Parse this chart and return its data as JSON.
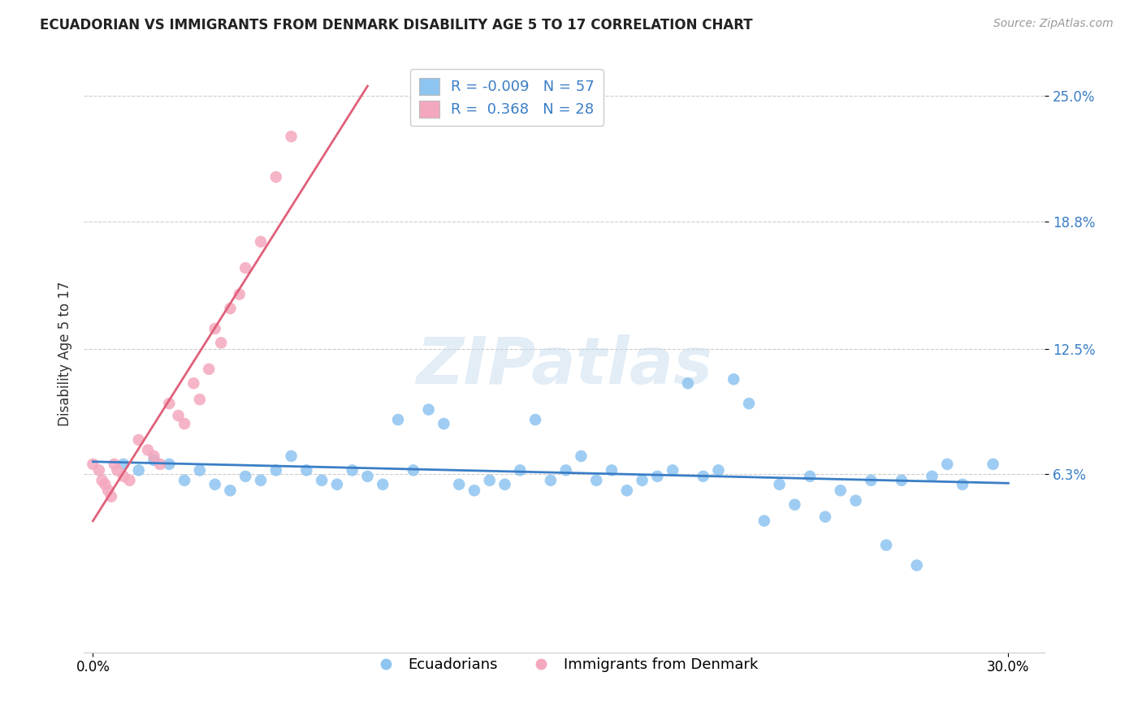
{
  "title": "ECUADORIAN VS IMMIGRANTS FROM DENMARK DISABILITY AGE 5 TO 17 CORRELATION CHART",
  "source_text": "Source: ZipAtlas.com",
  "ylabel": "Disability Age 5 to 17",
  "legend_labels": [
    "Ecuadorians",
    "Immigrants from Denmark"
  ],
  "r_blue": -0.009,
  "n_blue": 57,
  "r_pink": 0.368,
  "n_pink": 28,
  "xlim": [
    0.0,
    0.3
  ],
  "ylim": [
    -0.02,
    0.27
  ],
  "yticks": [
    0.063,
    0.125,
    0.188,
    0.25
  ],
  "ytick_labels": [
    "6.3%",
    "12.5%",
    "18.8%",
    "25.0%"
  ],
  "xticks": [
    0.0,
    0.3
  ],
  "xtick_labels": [
    "0.0%",
    "30.0%"
  ],
  "watermark": "ZIPatlas",
  "blue_color": "#8EC4F0",
  "pink_color": "#F4A8BE",
  "trendline_blue_color": "#3A7EC6",
  "trendline_pink_color": "#E0607A",
  "blue_points": [
    [
      0.01,
      0.068
    ],
    [
      0.015,
      0.065
    ],
    [
      0.02,
      0.07
    ],
    [
      0.025,
      0.068
    ],
    [
      0.03,
      0.06
    ],
    [
      0.035,
      0.065
    ],
    [
      0.04,
      0.058
    ],
    [
      0.045,
      0.055
    ],
    [
      0.05,
      0.062
    ],
    [
      0.055,
      0.06
    ],
    [
      0.06,
      0.065
    ],
    [
      0.065,
      0.072
    ],
    [
      0.07,
      0.065
    ],
    [
      0.075,
      0.06
    ],
    [
      0.08,
      0.058
    ],
    [
      0.085,
      0.065
    ],
    [
      0.09,
      0.062
    ],
    [
      0.095,
      0.058
    ],
    [
      0.1,
      0.09
    ],
    [
      0.105,
      0.065
    ],
    [
      0.11,
      0.095
    ],
    [
      0.115,
      0.088
    ],
    [
      0.12,
      0.058
    ],
    [
      0.125,
      0.055
    ],
    [
      0.13,
      0.06
    ],
    [
      0.135,
      0.058
    ],
    [
      0.14,
      0.065
    ],
    [
      0.145,
      0.09
    ],
    [
      0.15,
      0.06
    ],
    [
      0.155,
      0.065
    ],
    [
      0.16,
      0.072
    ],
    [
      0.165,
      0.06
    ],
    [
      0.17,
      0.065
    ],
    [
      0.175,
      0.055
    ],
    [
      0.18,
      0.06
    ],
    [
      0.185,
      0.062
    ],
    [
      0.19,
      0.065
    ],
    [
      0.195,
      0.108
    ],
    [
      0.2,
      0.062
    ],
    [
      0.205,
      0.065
    ],
    [
      0.21,
      0.11
    ],
    [
      0.215,
      0.098
    ],
    [
      0.22,
      0.04
    ],
    [
      0.225,
      0.058
    ],
    [
      0.23,
      0.048
    ],
    [
      0.235,
      0.062
    ],
    [
      0.24,
      0.042
    ],
    [
      0.245,
      0.055
    ],
    [
      0.25,
      0.05
    ],
    [
      0.255,
      0.06
    ],
    [
      0.26,
      0.028
    ],
    [
      0.265,
      0.06
    ],
    [
      0.27,
      0.018
    ],
    [
      0.275,
      0.062
    ],
    [
      0.28,
      0.068
    ],
    [
      0.285,
      0.058
    ],
    [
      0.295,
      0.068
    ]
  ],
  "pink_points": [
    [
      0.0,
      0.068
    ],
    [
      0.002,
      0.065
    ],
    [
      0.003,
      0.06
    ],
    [
      0.004,
      0.058
    ],
    [
      0.005,
      0.055
    ],
    [
      0.006,
      0.052
    ],
    [
      0.007,
      0.068
    ],
    [
      0.008,
      0.065
    ],
    [
      0.01,
      0.062
    ],
    [
      0.012,
      0.06
    ],
    [
      0.015,
      0.08
    ],
    [
      0.018,
      0.075
    ],
    [
      0.02,
      0.072
    ],
    [
      0.022,
      0.068
    ],
    [
      0.025,
      0.098
    ],
    [
      0.028,
      0.092
    ],
    [
      0.03,
      0.088
    ],
    [
      0.033,
      0.108
    ],
    [
      0.035,
      0.1
    ],
    [
      0.038,
      0.115
    ],
    [
      0.04,
      0.135
    ],
    [
      0.042,
      0.128
    ],
    [
      0.045,
      0.145
    ],
    [
      0.048,
      0.152
    ],
    [
      0.05,
      0.165
    ],
    [
      0.055,
      0.178
    ],
    [
      0.06,
      0.21
    ],
    [
      0.065,
      0.23
    ]
  ]
}
